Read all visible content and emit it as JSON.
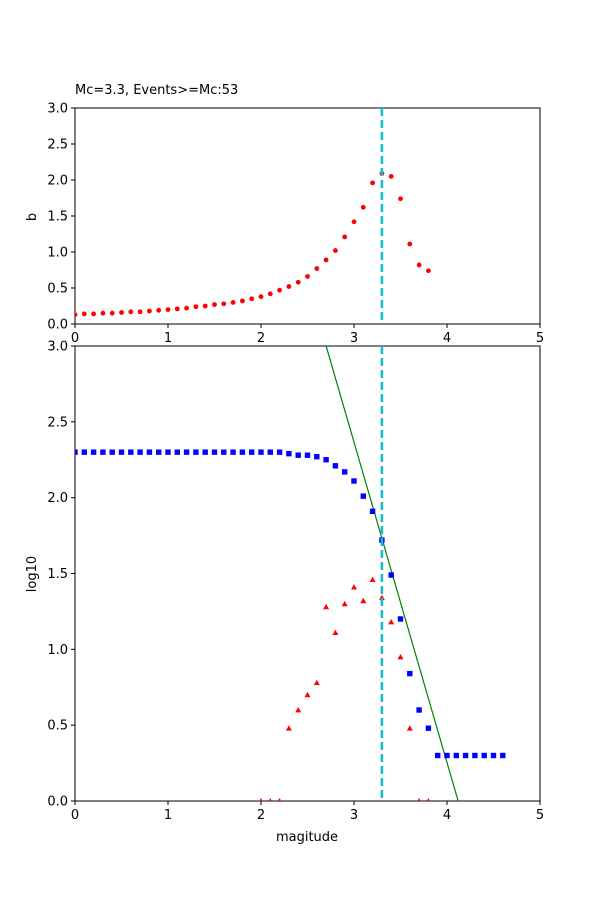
{
  "chart_data": [
    {
      "type": "scatter",
      "title": "Mc=3.3, Events>=Mc:53",
      "xlabel": "",
      "ylabel": "b",
      "xlim": [
        0,
        5
      ],
      "ylim": [
        0,
        3
      ],
      "xticks": [
        "0",
        "1",
        "2",
        "3",
        "4",
        "5"
      ],
      "yticks": [
        "0.0",
        "0.5",
        "1.0",
        "1.5",
        "2.0",
        "2.5",
        "3.0"
      ],
      "mc_line": {
        "x": 3.3,
        "color": "#17becf"
      },
      "series": [
        {
          "marker": "circle",
          "color": "#ff0000",
          "x": [
            0.0,
            0.1,
            0.2,
            0.3,
            0.4,
            0.5,
            0.6,
            0.7,
            0.8,
            0.9,
            1.0,
            1.1,
            1.2,
            1.3,
            1.4,
            1.5,
            1.6,
            1.7,
            1.8,
            1.9,
            2.0,
            2.1,
            2.2,
            2.3,
            2.4,
            2.5,
            2.6,
            2.7,
            2.8,
            2.9,
            3.0,
            3.1,
            3.2,
            3.3,
            3.4,
            3.5,
            3.6,
            3.7,
            3.8
          ],
          "y": [
            0.13,
            0.14,
            0.14,
            0.15,
            0.15,
            0.16,
            0.17,
            0.17,
            0.18,
            0.19,
            0.2,
            0.21,
            0.22,
            0.24,
            0.25,
            0.27,
            0.28,
            0.3,
            0.32,
            0.35,
            0.38,
            0.42,
            0.47,
            0.52,
            0.58,
            0.66,
            0.77,
            0.89,
            1.02,
            1.21,
            1.42,
            1.62,
            1.96,
            2.09,
            2.05,
            1.74,
            1.11,
            0.82,
            0.74
          ]
        }
      ]
    },
    {
      "type": "scatter",
      "title": "",
      "xlabel": "magitude",
      "ylabel": "log10",
      "xlim": [
        0,
        5
      ],
      "ylim": [
        0,
        3
      ],
      "xticks": [
        "0",
        "1",
        "2",
        "3",
        "4",
        "5"
      ],
      "yticks": [
        "0.0",
        "0.5",
        "1.0",
        "1.5",
        "2.0",
        "2.5",
        "3.0"
      ],
      "mc_line": {
        "x": 3.3,
        "color": "#17becf"
      },
      "fit_line": {
        "color": "#008000",
        "x": [
          2.7,
          4.12
        ],
        "y": [
          3.0,
          0.0
        ]
      },
      "series": [
        {
          "marker": "square",
          "color": "#0000ff",
          "x": [
            0.0,
            0.1,
            0.2,
            0.3,
            0.4,
            0.5,
            0.6,
            0.7,
            0.8,
            0.9,
            1.0,
            1.1,
            1.2,
            1.3,
            1.4,
            1.5,
            1.6,
            1.7,
            1.8,
            1.9,
            2.0,
            2.1,
            2.2,
            2.3,
            2.4,
            2.5,
            2.6,
            2.7,
            2.8,
            2.9,
            3.0,
            3.1,
            3.2,
            3.3,
            3.4,
            3.5,
            3.6,
            3.7,
            3.8,
            3.9,
            4.0,
            4.1,
            4.2,
            4.3,
            4.4,
            4.5,
            4.6
          ],
          "y": [
            2.3,
            2.3,
            2.3,
            2.3,
            2.3,
            2.3,
            2.3,
            2.3,
            2.3,
            2.3,
            2.3,
            2.3,
            2.3,
            2.3,
            2.3,
            2.3,
            2.3,
            2.3,
            2.3,
            2.3,
            2.3,
            2.3,
            2.3,
            2.29,
            2.28,
            2.28,
            2.27,
            2.25,
            2.21,
            2.17,
            2.11,
            2.01,
            1.91,
            1.72,
            1.49,
            1.2,
            0.84,
            0.6,
            0.48,
            0.3,
            0.3,
            0.3,
            0.3,
            0.3,
            0.3,
            0.3,
            0.3
          ]
        },
        {
          "marker": "triangle",
          "color": "#ff0000",
          "x": [
            2.0,
            2.1,
            2.2,
            2.3,
            2.4,
            2.5,
            2.6,
            2.7,
            2.8,
            2.9,
            3.0,
            3.1,
            3.2,
            3.3,
            3.4,
            3.5,
            3.6,
            3.7,
            3.8
          ],
          "y": [
            0.0,
            0.0,
            0.0,
            0.48,
            0.6,
            0.7,
            0.78,
            1.28,
            1.11,
            1.3,
            1.41,
            1.32,
            1.46,
            1.34,
            1.18,
            0.95,
            0.48,
            0.0,
            0.0
          ]
        }
      ]
    }
  ]
}
